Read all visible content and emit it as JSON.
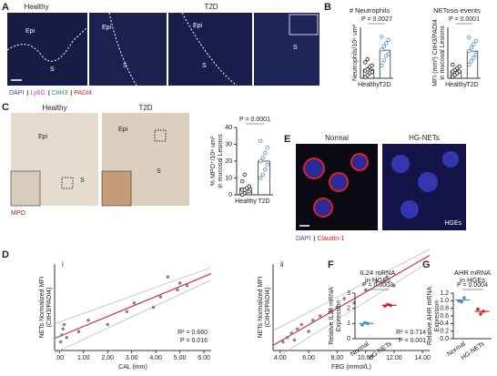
{
  "figure": {
    "panel_labels": [
      "A",
      "B",
      "C",
      "D",
      "E",
      "F",
      "G"
    ],
    "sub_labels": [
      "i",
      "ii"
    ]
  },
  "panel_a": {
    "titles": [
      "Healthy",
      "T2D"
    ],
    "regions": [
      "Epi",
      "S",
      "Epi",
      "S",
      "Epi",
      "S",
      "S"
    ],
    "stains": [
      "DAPI",
      "Ly6G",
      "CitH3",
      "PADI4"
    ],
    "stain_colors": [
      "#2b4bd6",
      "#c03cc8",
      "#2a9a3a",
      "#d02020"
    ]
  },
  "panel_c": {
    "titles": [
      "Healthy",
      "T2D"
    ],
    "regions": [
      "Epi",
      "S",
      "Epi",
      "S"
    ],
    "stain": "MPO"
  },
  "panel_e": {
    "titles": [
      "Normal",
      "HG-NETs"
    ],
    "cell": "HGEs",
    "stains": [
      "DAPI",
      "Claudin-1"
    ],
    "stain_colors": [
      "#2b4bd6",
      "#d02020"
    ]
  },
  "chart_data": [
    {
      "type": "bar",
      "title": "# Neutrophils",
      "y_label": [
        "Neutrophils/10⁶ um²"
      ],
      "categories": [
        "Healthy",
        "T2D"
      ],
      "colors": [
        "#222222",
        "#4a90c8"
      ],
      "values": [
        14,
        44
      ],
      "points": [
        [
          2,
          5,
          8,
          10,
          12,
          14,
          18,
          20,
          25,
          30
        ],
        [
          20,
          28,
          35,
          38,
          45,
          50,
          55,
          60,
          65
        ]
      ],
      "ylim": [
        0,
        80
      ],
      "annotation": "P = 0.0027"
    },
    {
      "type": "bar",
      "title": "NETosis events",
      "y_label": [
        "MFI (mm²) CitH3/PADI4",
        "in mucosal Lesions"
      ],
      "categories": [
        "Healthy",
        "T2D"
      ],
      "colors": [
        "#222222",
        "#4a90c8"
      ],
      "values": [
        2.2,
        8
      ],
      "points": [
        [
          0.5,
          1,
          1.5,
          2,
          2,
          2.5,
          3,
          3.5,
          4
        ],
        [
          4,
          5,
          6,
          7,
          8,
          9,
          10,
          11,
          12
        ]
      ],
      "ylim": [
        0,
        15
      ],
      "annotation": "P = 0.0001"
    },
    {
      "type": "bar",
      "y_label": [
        "% MPO⁺/10⁶ um²",
        "in mucosal Lesions"
      ],
      "categories": [
        "Healthy",
        "T2D"
      ],
      "colors": [
        "#222222",
        "#4a90c8"
      ],
      "values": [
        4,
        20
      ],
      "points": [
        [
          0,
          1,
          2,
          2,
          3,
          3,
          4,
          5,
          8,
          12
        ],
        [
          10,
          12,
          15,
          18,
          20,
          22,
          25,
          28,
          32
        ]
      ],
      "ylim": [
        0,
        40
      ],
      "yticks": [
        0,
        10,
        20,
        30,
        40
      ],
      "annotation": "P = 0.0001"
    },
    {
      "type": "scatter",
      "x_label": "CAL (mm)",
      "y_label": [
        "NETs Normalized MFI",
        "(CitH3/PADI4)"
      ],
      "color": "#888888",
      "fit_color": "#d0305a",
      "x": [
        0.05,
        0.1,
        0.15,
        0.2,
        0.3,
        0.8,
        1.2,
        2.0,
        2.8,
        3.1,
        3.9,
        4.2,
        4.5,
        4.9,
        5.0,
        5.3
      ],
      "y": [
        0.1,
        0.18,
        0.25,
        0.3,
        0.15,
        0.22,
        0.35,
        0.3,
        0.45,
        0.55,
        0.5,
        0.62,
        0.85,
        0.7,
        0.78,
        0.75
      ],
      "xlim": [
        -0.2,
        6.3
      ],
      "ylim": [
        0,
        1
      ],
      "xticks": [
        {
          "value": 0,
          "label": ".00"
        },
        {
          "value": 1,
          "label": "1.00"
        },
        {
          "value": 2,
          "label": "2.00"
        },
        {
          "value": 3,
          "label": "3.00"
        },
        {
          "value": 4,
          "label": "4.00"
        },
        {
          "value": 5,
          "label": "5.00"
        },
        {
          "value": 6,
          "label": "6.00"
        }
      ],
      "annotations": [
        "R² = 0.660",
        "P = 0.016"
      ]
    },
    {
      "type": "scatter",
      "x_label": "FBG (mmol/L)",
      "y_label": [
        "NETs Normalized MFI",
        "(CitH3/PADI4)"
      ],
      "color": "#888888",
      "fit_color": "#d0305a",
      "x": [
        4.2,
        4.5,
        4.8,
        5.0,
        5.2,
        5.5,
        6.0,
        6.3,
        6.8,
        7.5,
        8.0,
        8.5,
        9.2,
        10.0,
        10.8,
        11.5,
        12.0
      ],
      "y": [
        0.1,
        0.15,
        0.2,
        0.12,
        0.25,
        0.3,
        0.22,
        0.35,
        0.4,
        0.45,
        0.5,
        0.6,
        0.55,
        0.7,
        0.8,
        0.85,
        0.75
      ],
      "xlim": [
        3.5,
        14.5
      ],
      "ylim": [
        0,
        1
      ],
      "xticks": [
        {
          "value": 4,
          "label": "4.00"
        },
        {
          "value": 6,
          "label": "6.00"
        },
        {
          "value": 8,
          "label": "8.00"
        },
        {
          "value": 10,
          "label": "10.00"
        },
        {
          "value": 12,
          "label": "12.00"
        },
        {
          "value": 14,
          "label": "14.00"
        }
      ],
      "annotations": [
        "R² = 0.714",
        "P < 0.001"
      ]
    },
    {
      "type": "dot",
      "title": [
        "IL24 mRNA",
        "in HGEs"
      ],
      "y_label": [
        "Relative IL24 mRNA",
        "Expression"
      ],
      "categories": [
        "Normal",
        "HG-NETs"
      ],
      "colors": [
        "#4a90c8",
        "#d02020"
      ],
      "values": [
        1.0,
        2.2
      ],
      "points": [
        [
          0.9,
          1.05,
          1.0
        ],
        [
          2.15,
          2.25,
          2.2
        ]
      ],
      "ylim": [
        0,
        3
      ],
      "yticks": [
        0,
        1,
        2,
        3
      ],
      "annotation": "P = 0.0003"
    },
    {
      "type": "dot",
      "title": [
        "AHR mRNA",
        "in HGEs"
      ],
      "y_label": [
        "Relative AHR mRNA",
        "Expression"
      ],
      "categories": [
        "Normal",
        "HG-NETs"
      ],
      "colors": [
        "#4a90c8",
        "#d02020"
      ],
      "values": [
        1.02,
        0.72
      ],
      "points": [
        [
          1.0,
          0.97,
          1.08
        ],
        [
          0.78,
          0.65,
          0.72
        ]
      ],
      "ylim": [
        0,
        1.2
      ],
      "yticks": [
        {
          "value": 0,
          "label": "0.0"
        },
        {
          "value": 0.2,
          "label": "0.2"
        },
        {
          "value": 0.4,
          "label": "0.4"
        },
        {
          "value": 0.6,
          "label": "0.6"
        },
        {
          "value": 0.8,
          "label": "0.8"
        },
        {
          "value": 1,
          "label": "1.0"
        },
        {
          "value": 1.2,
          "label": "1.2"
        }
      ],
      "annotation": "P = 0.0004"
    }
  ]
}
